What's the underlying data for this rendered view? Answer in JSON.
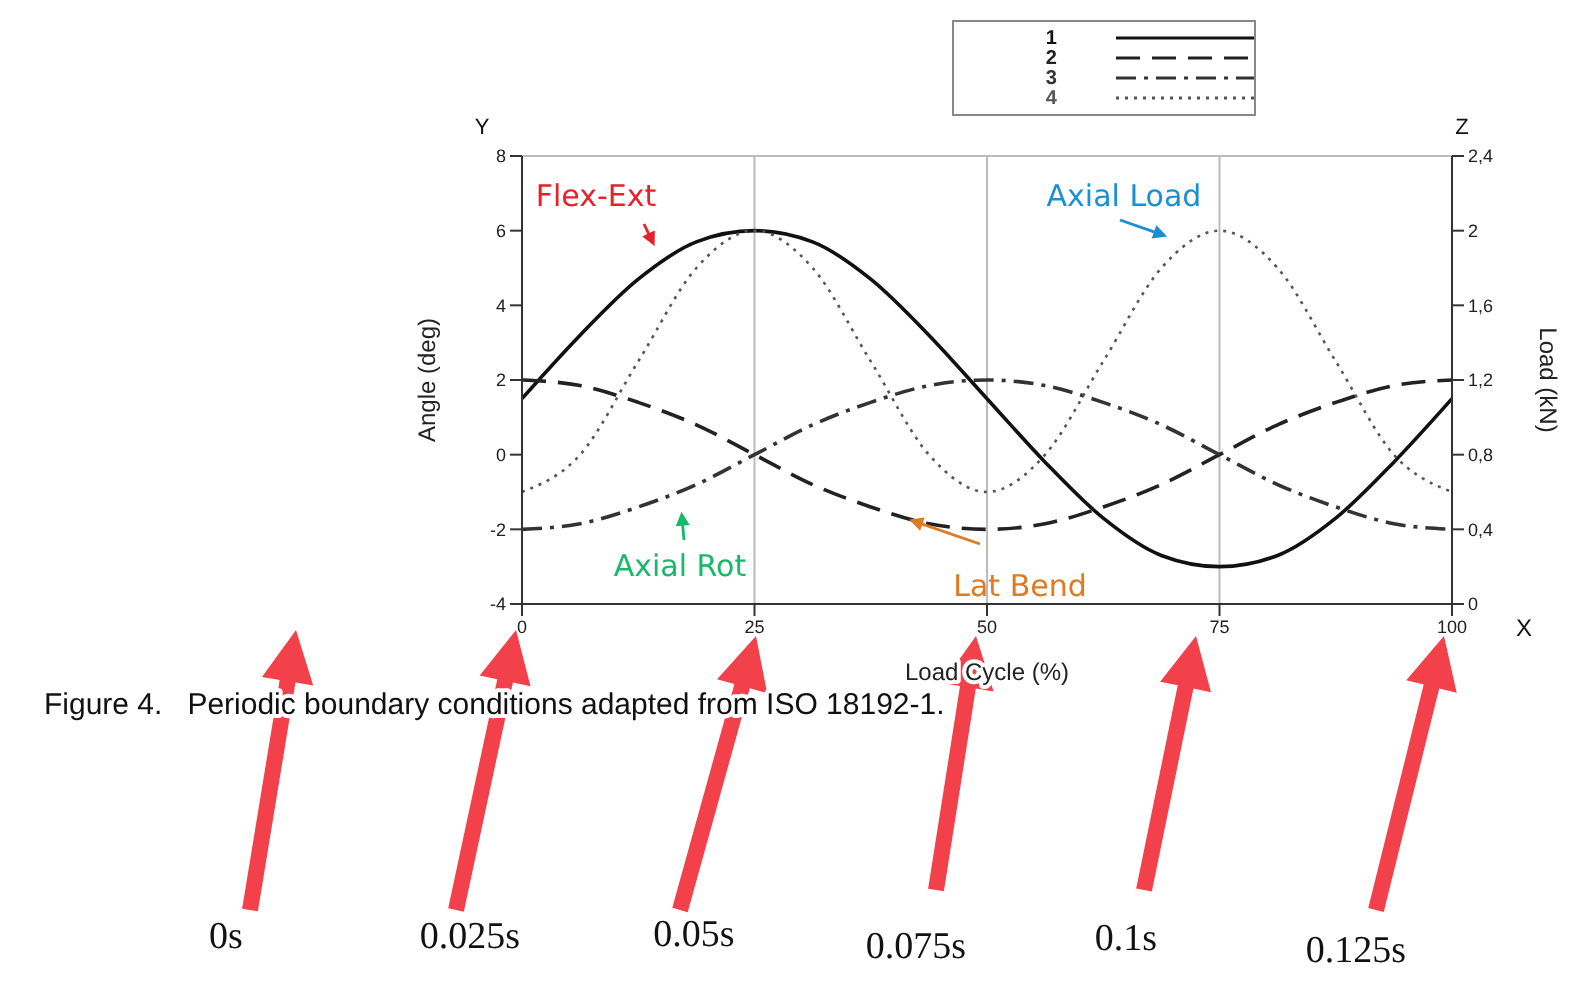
{
  "chart_data": {
    "type": "line",
    "xlabel": "Load Cycle (%)",
    "ylabel": "Angle (deg)",
    "y2label": "Load (kN)",
    "x": [
      0,
      6.25,
      12.5,
      18.75,
      25,
      31.25,
      37.5,
      43.75,
      50,
      56.25,
      62.5,
      68.75,
      75,
      81.25,
      87.5,
      93.75,
      100
    ],
    "xlim": [
      0,
      100
    ],
    "xticks": [
      0,
      25,
      50,
      75,
      100
    ],
    "ylim": [
      -4,
      8
    ],
    "yticks": [
      -4,
      -2,
      0,
      2,
      4,
      6,
      8
    ],
    "y2lim": [
      0,
      2.4
    ],
    "y2ticks": [
      0,
      {
        "value": 0.4,
        "label": "0,4"
      },
      {
        "value": 0.8,
        "label": "0,8"
      },
      {
        "value": 1.2,
        "label": "1,2"
      },
      {
        "value": 1.6,
        "label": "1,6"
      },
      2,
      {
        "value": 2.4,
        "label": "2,4"
      }
    ],
    "grid": true,
    "legend": "top right",
    "marker": "none",
    "series": [
      {
        "name": "1",
        "color": "#111111",
        "line_style": "solid",
        "values": [
          1.5,
          3.2,
          4.7,
          5.7,
          6,
          5.7,
          4.7,
          3.2,
          1.5,
          -0.2,
          -1.7,
          -2.7,
          -3,
          -2.7,
          -1.7,
          -0.2,
          1.5
        ]
      },
      {
        "name": "2",
        "color": "#222222",
        "line_style": "dashed",
        "values": [
          2,
          1.85,
          1.4,
          0.8,
          0,
          -0.8,
          -1.4,
          -1.85,
          -2,
          -1.85,
          -1.4,
          -0.8,
          0,
          0.8,
          1.4,
          1.85,
          2
        ]
      },
      {
        "name": "3",
        "color": "#333333",
        "line_style": "dashdot",
        "values": [
          -2,
          -1.85,
          -1.4,
          -0.8,
          0,
          0.8,
          1.4,
          1.85,
          2,
          1.85,
          1.4,
          0.8,
          0,
          -0.8,
          -1.4,
          -1.85,
          -2
        ]
      },
      {
        "name": "4",
        "color": "#555555",
        "line_style": "dotted",
        "axis": "y2",
        "values": [
          0.6,
          0.8,
          1.3,
          1.8,
          2,
          1.8,
          1.3,
          0.8,
          0.6,
          0.8,
          1.3,
          1.8,
          2,
          1.8,
          1.3,
          0.8,
          0.6
        ]
      }
    ],
    "annotations": [
      {
        "text": "Flex-Ext",
        "x": 15,
        "y": 5.2
      },
      {
        "text": "Axial Load",
        "x": 71,
        "y": 5.7
      },
      {
        "text": "Axial Rot",
        "x": 17,
        "y": -1.1
      },
      {
        "text": "Lat Bend",
        "x": 40,
        "y": -1.6
      },
      "Y",
      "Z",
      "X",
      "Figure 4.   Periodic boundary conditions adapted from ISO 18192-1.",
      "0s",
      "0.025s",
      "0.05s",
      "0.075s",
      "0.1s",
      "0.125s"
    ]
  }
}
